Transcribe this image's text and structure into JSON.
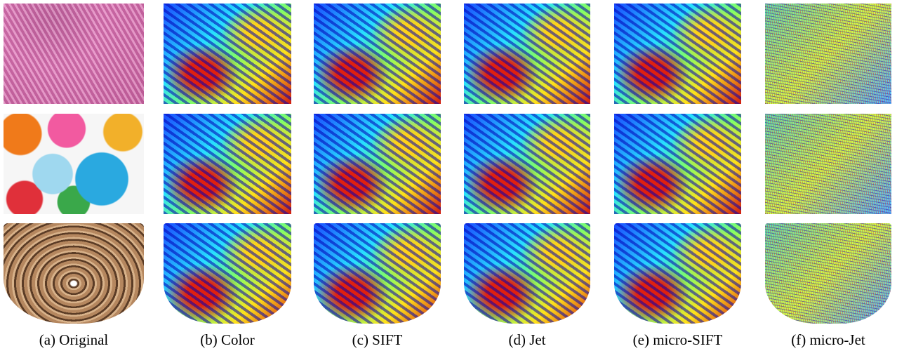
{
  "captions": [
    "(a) Original",
    "(b) Color",
    "(c) SIFT",
    "(d) Jet",
    "(e) micro-SIFT",
    "(f) micro-Jet"
  ]
}
